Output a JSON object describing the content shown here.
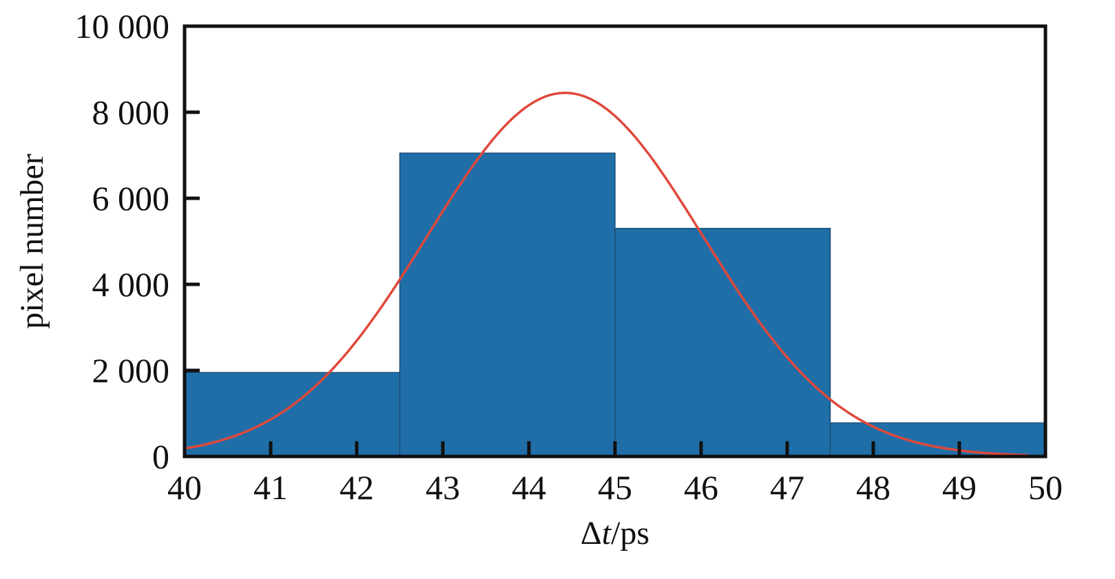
{
  "chart_data": {
    "type": "bar",
    "subtype": "histogram",
    "xlabel": "Δt/ps",
    "xlabel_parts": {
      "prefix": "Δ",
      "var": "t",
      "suffix": "/ps"
    },
    "ylabel": "pixel number",
    "xlim": [
      40,
      50
    ],
    "ylim": [
      0,
      10000
    ],
    "x_ticks": [
      40,
      41,
      42,
      43,
      44,
      45,
      46,
      47,
      48,
      49,
      50
    ],
    "x_tick_labels": [
      "40",
      "41",
      "42",
      "43",
      "44",
      "45",
      "46",
      "47",
      "48",
      "49",
      "50"
    ],
    "y_ticks": [
      0,
      2000,
      4000,
      6000,
      8000,
      10000
    ],
    "y_tick_labels": [
      "0",
      "2 000",
      "4 000",
      "6 000",
      "8 000",
      "10 000"
    ],
    "bins": [
      {
        "x0": 40.0,
        "x1": 42.5,
        "value": 1950
      },
      {
        "x0": 42.5,
        "x1": 45.0,
        "value": 7050
      },
      {
        "x0": 45.0,
        "x1": 47.5,
        "value": 5300
      },
      {
        "x0": 47.5,
        "x1": 50.0,
        "value": 780
      }
    ],
    "fit_curve": {
      "type": "gaussian",
      "peak_x": 44.42,
      "peak_y": 8450,
      "sigma": 1.6,
      "x_range": [
        40.0,
        49.8
      ]
    },
    "colors": {
      "bars": "#1f6ea8",
      "curve": "#e0483a",
      "axes": "#111111"
    },
    "grid": false,
    "legend": "none"
  }
}
